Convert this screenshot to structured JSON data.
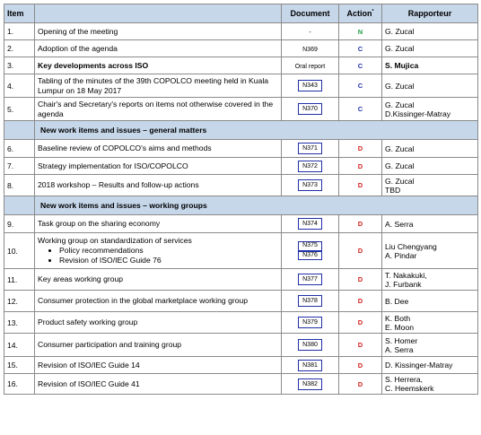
{
  "table": {
    "headers": {
      "item": "Item",
      "document": "Document",
      "action": "Action",
      "action_marker": "*",
      "rapporteur": "Rapporteur"
    },
    "rows": [
      {
        "kind": "item",
        "num": "1.",
        "title": "Opening of the meeting",
        "doc": "-",
        "doc_style": "plain",
        "action": "N",
        "rapporteurs": [
          "G. Zucal"
        ]
      },
      {
        "kind": "item",
        "num": "2.",
        "title": "Adoption of the agenda",
        "doc": "N369",
        "doc_style": "plain",
        "action": "C",
        "rapporteurs": [
          "G. Zucal"
        ]
      },
      {
        "kind": "item",
        "num": "3.",
        "title": "Key developments across ISO",
        "bold": true,
        "doc": "Oral report",
        "doc_style": "plain",
        "action": "C",
        "rapporteurs": [
          "S. Mujica"
        ],
        "rap_bold": true
      },
      {
        "kind": "item",
        "num": "4.",
        "title": "Tabling of the minutes of the 39th COPOLCO meeting held in Kuala Lumpur on 18 May 2017",
        "doc": "N343",
        "doc_style": "box",
        "action": "C",
        "rapporteurs": [
          "G. Zucal"
        ]
      },
      {
        "kind": "item",
        "num": "5.",
        "title": "Chair's and Secretary's reports on items not otherwise covered in the agenda",
        "doc": "N370",
        "doc_style": "box",
        "action": "C",
        "rapporteurs": [
          "G. Zucal",
          "D.Kissinger-Matray"
        ]
      },
      {
        "kind": "section",
        "title": "New work items and issues – general matters"
      },
      {
        "kind": "item",
        "num": "6.",
        "title": "Baseline review of COPOLCO's aims and methods",
        "doc": "N371",
        "doc_style": "box",
        "action": "D",
        "rapporteurs": [
          "G. Zucal"
        ]
      },
      {
        "kind": "item",
        "num": "7.",
        "title": "Strategy implementation for ISO/COPOLCO",
        "doc": "N372",
        "doc_style": "box",
        "action": "D",
        "rapporteurs": [
          "G. Zucal"
        ]
      },
      {
        "kind": "item",
        "num": "8.",
        "title": "2018 workshop – Results and follow-up actions",
        "doc": "N373",
        "doc_style": "box",
        "action": "D",
        "rapporteurs": [
          "G. Zucal",
          "TBD"
        ]
      },
      {
        "kind": "section",
        "title": "New work items and issues – working groups"
      },
      {
        "kind": "item",
        "num": "9.",
        "title": "Task group on the sharing economy",
        "doc": "N374",
        "doc_style": "box",
        "action": "D",
        "rapporteurs": [
          "A. Serra"
        ]
      },
      {
        "kind": "item",
        "num": "10.",
        "title": "Working group on standardization of services",
        "bullets": [
          "Policy recommendations",
          "Revision of ISO/IEC Guide 76"
        ],
        "docs": [
          "N375",
          "N376"
        ],
        "doc_style": "stack",
        "action": "D",
        "rapporteurs": [
          "Liu Chengyang",
          "A. Pindar"
        ]
      },
      {
        "kind": "item",
        "num": "11.",
        "title": "Key areas working group",
        "doc": "N377",
        "doc_style": "box",
        "action": "D",
        "rapporteurs": [
          "T. Nakakuki,",
          "J. Furbank"
        ]
      },
      {
        "kind": "item",
        "num": "12.",
        "title": "Consumer protection in the global marketplace working group",
        "doc": "N378",
        "doc_style": "box",
        "action": "D",
        "rapporteurs": [
          "B. Dee"
        ]
      },
      {
        "kind": "item",
        "num": "13.",
        "title": "Product safety working group",
        "doc": "N379",
        "doc_style": "box",
        "action": "D",
        "rapporteurs": [
          "K. Both",
          "E. Moon"
        ]
      },
      {
        "kind": "item",
        "num": "14.",
        "title": "Consumer participation and training group",
        "doc": "N380",
        "doc_style": "box",
        "action": "D",
        "rapporteurs": [
          "S. Homer",
          "A. Serra"
        ]
      },
      {
        "kind": "item",
        "num": "15.",
        "title": "Revision of ISO/IEC Guide 14",
        "doc": "N381",
        "doc_style": "box",
        "action": "D",
        "rapporteurs": [
          "D. Kissinger-Matray"
        ]
      },
      {
        "kind": "item",
        "num": "16.",
        "title": "Revision of ISO/IEC Guide 41",
        "doc": "N382",
        "doc_style": "box",
        "action": "D",
        "rapporteurs": [
          "S. Herrera,",
          "C. Heemskerk"
        ]
      }
    ]
  },
  "colors": {
    "header_bg": "#c6d7ea",
    "grid": "#8a8a8a",
    "doc_box_border": "#1f2fa8",
    "action_N": "#1fa24a",
    "action_C": "#1f2fa8",
    "action_D": "#d81e1e"
  }
}
